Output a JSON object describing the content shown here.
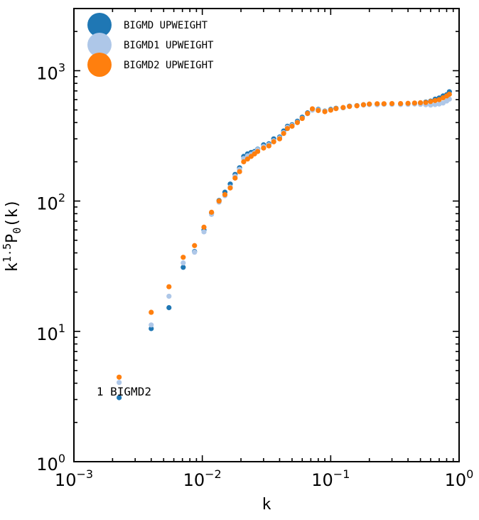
{
  "chart_data": {
    "type": "scatter",
    "xscale": "log",
    "yscale": "log",
    "xlim": [
      0.001,
      1.0
    ],
    "ylim": [
      1.0,
      3000
    ],
    "xlabel": "k",
    "ylabel": "k^{1.5}P_0(k)",
    "grid": false,
    "legend_position": "top-left",
    "x_ticks": [
      {
        "base": "10",
        "exp": "−3",
        "value": 0.001
      },
      {
        "base": "10",
        "exp": "−2",
        "value": 0.01
      },
      {
        "base": "10",
        "exp": "−1",
        "value": 0.1
      },
      {
        "base": "10",
        "exp": "0",
        "value": 1.0
      }
    ],
    "y_ticks": [
      {
        "base": "10",
        "exp": "0",
        "value": 1
      },
      {
        "base": "10",
        "exp": "1",
        "value": 10
      },
      {
        "base": "10",
        "exp": "2",
        "value": 100
      },
      {
        "base": "10",
        "exp": "3",
        "value": 1000
      }
    ],
    "annotation": {
      "text": "1 BIGMD2",
      "x": 0.0022,
      "y": 3.3
    },
    "series": [
      {
        "name": "BIGMD UPWEIGHT",
        "color": "#1f77b4",
        "points": [
          [
            0.00225,
            3.1
          ],
          [
            0.004,
            10.5
          ],
          [
            0.0055,
            15.2
          ],
          [
            0.0071,
            31
          ],
          [
            0.0087,
            41
          ],
          [
            0.0103,
            60
          ],
          [
            0.0118,
            81
          ],
          [
            0.0135,
            101
          ],
          [
            0.015,
            117
          ],
          [
            0.0165,
            135
          ],
          [
            0.018,
            160
          ],
          [
            0.0195,
            180
          ],
          [
            0.021,
            220
          ],
          [
            0.0225,
            230
          ],
          [
            0.024,
            236
          ],
          [
            0.0255,
            240
          ],
          [
            0.027,
            250
          ],
          [
            0.03,
            270
          ],
          [
            0.033,
            275
          ],
          [
            0.036,
            300
          ],
          [
            0.04,
            310
          ],
          [
            0.043,
            345
          ],
          [
            0.046,
            375
          ],
          [
            0.05,
            385
          ],
          [
            0.055,
            410
          ],
          [
            0.06,
            440
          ],
          [
            0.066,
            475
          ],
          [
            0.072,
            505
          ],
          [
            0.08,
            505
          ],
          [
            0.09,
            490
          ],
          [
            0.1,
            505
          ],
          [
            0.11,
            515
          ],
          [
            0.125,
            520
          ],
          [
            0.14,
            535
          ],
          [
            0.16,
            540
          ],
          [
            0.18,
            548
          ],
          [
            0.2,
            552
          ],
          [
            0.23,
            552
          ],
          [
            0.26,
            555
          ],
          [
            0.3,
            557
          ],
          [
            0.35,
            555
          ],
          [
            0.4,
            558
          ],
          [
            0.45,
            560
          ],
          [
            0.5,
            565
          ],
          [
            0.55,
            575
          ],
          [
            0.6,
            585
          ],
          [
            0.65,
            605
          ],
          [
            0.7,
            618
          ],
          [
            0.75,
            640
          ],
          [
            0.8,
            655
          ],
          [
            0.84,
            690
          ]
        ]
      },
      {
        "name": "BIGMD1 UPWEIGHT",
        "color": "#aec7e8",
        "points": [
          [
            0.00225,
            4.05
          ],
          [
            0.004,
            11.2
          ],
          [
            0.0055,
            18.6
          ],
          [
            0.0071,
            33.5
          ],
          [
            0.0087,
            40.5
          ],
          [
            0.0103,
            58
          ],
          [
            0.0118,
            79
          ],
          [
            0.0135,
            98
          ],
          [
            0.015,
            110
          ],
          [
            0.0165,
            128
          ],
          [
            0.018,
            155
          ],
          [
            0.0195,
            175
          ],
          [
            0.021,
            212
          ],
          [
            0.0225,
            222
          ],
          [
            0.024,
            228
          ],
          [
            0.0255,
            235
          ],
          [
            0.027,
            248
          ],
          [
            0.03,
            262
          ],
          [
            0.033,
            270
          ],
          [
            0.036,
            290
          ],
          [
            0.04,
            305
          ],
          [
            0.043,
            335
          ],
          [
            0.046,
            368
          ],
          [
            0.05,
            380
          ],
          [
            0.055,
            402
          ],
          [
            0.06,
            432
          ],
          [
            0.066,
            468
          ],
          [
            0.072,
            498
          ],
          [
            0.08,
            500
          ],
          [
            0.09,
            488
          ],
          [
            0.1,
            500
          ],
          [
            0.11,
            512
          ],
          [
            0.125,
            520
          ],
          [
            0.14,
            532
          ],
          [
            0.16,
            538
          ],
          [
            0.18,
            545
          ],
          [
            0.2,
            550
          ],
          [
            0.23,
            548
          ],
          [
            0.26,
            553
          ],
          [
            0.3,
            552
          ],
          [
            0.35,
            550
          ],
          [
            0.4,
            552
          ],
          [
            0.45,
            555
          ],
          [
            0.5,
            552
          ],
          [
            0.55,
            548
          ],
          [
            0.6,
            545
          ],
          [
            0.65,
            550
          ],
          [
            0.7,
            555
          ],
          [
            0.75,
            565
          ],
          [
            0.8,
            585
          ],
          [
            0.84,
            605
          ]
        ]
      },
      {
        "name": "BIGMD2 UPWEIGHT",
        "color": "#ff7f0e",
        "points": [
          [
            0.00225,
            4.45
          ],
          [
            0.004,
            14
          ],
          [
            0.0055,
            22
          ],
          [
            0.0071,
            37
          ],
          [
            0.0087,
            45.5
          ],
          [
            0.0103,
            63
          ],
          [
            0.0118,
            82
          ],
          [
            0.0135,
            100
          ],
          [
            0.015,
            112
          ],
          [
            0.0165,
            126
          ],
          [
            0.018,
            150
          ],
          [
            0.0195,
            168
          ],
          [
            0.021,
            200
          ],
          [
            0.0225,
            210
          ],
          [
            0.024,
            220
          ],
          [
            0.0255,
            230
          ],
          [
            0.027,
            240
          ],
          [
            0.03,
            255
          ],
          [
            0.033,
            265
          ],
          [
            0.036,
            285
          ],
          [
            0.04,
            300
          ],
          [
            0.043,
            330
          ],
          [
            0.046,
            360
          ],
          [
            0.05,
            375
          ],
          [
            0.055,
            400
          ],
          [
            0.06,
            430
          ],
          [
            0.066,
            470
          ],
          [
            0.072,
            510
          ],
          [
            0.08,
            495
          ],
          [
            0.09,
            485
          ],
          [
            0.1,
            498
          ],
          [
            0.11,
            512
          ],
          [
            0.125,
            522
          ],
          [
            0.14,
            532
          ],
          [
            0.16,
            538
          ],
          [
            0.18,
            548
          ],
          [
            0.2,
            555
          ],
          [
            0.23,
            558
          ],
          [
            0.26,
            558
          ],
          [
            0.3,
            560
          ],
          [
            0.35,
            560
          ],
          [
            0.4,
            562
          ],
          [
            0.45,
            565
          ],
          [
            0.5,
            568
          ],
          [
            0.55,
            570
          ],
          [
            0.6,
            580
          ],
          [
            0.65,
            590
          ],
          [
            0.7,
            600
          ],
          [
            0.75,
            620
          ],
          [
            0.8,
            640
          ],
          [
            0.84,
            660
          ]
        ]
      }
    ]
  }
}
